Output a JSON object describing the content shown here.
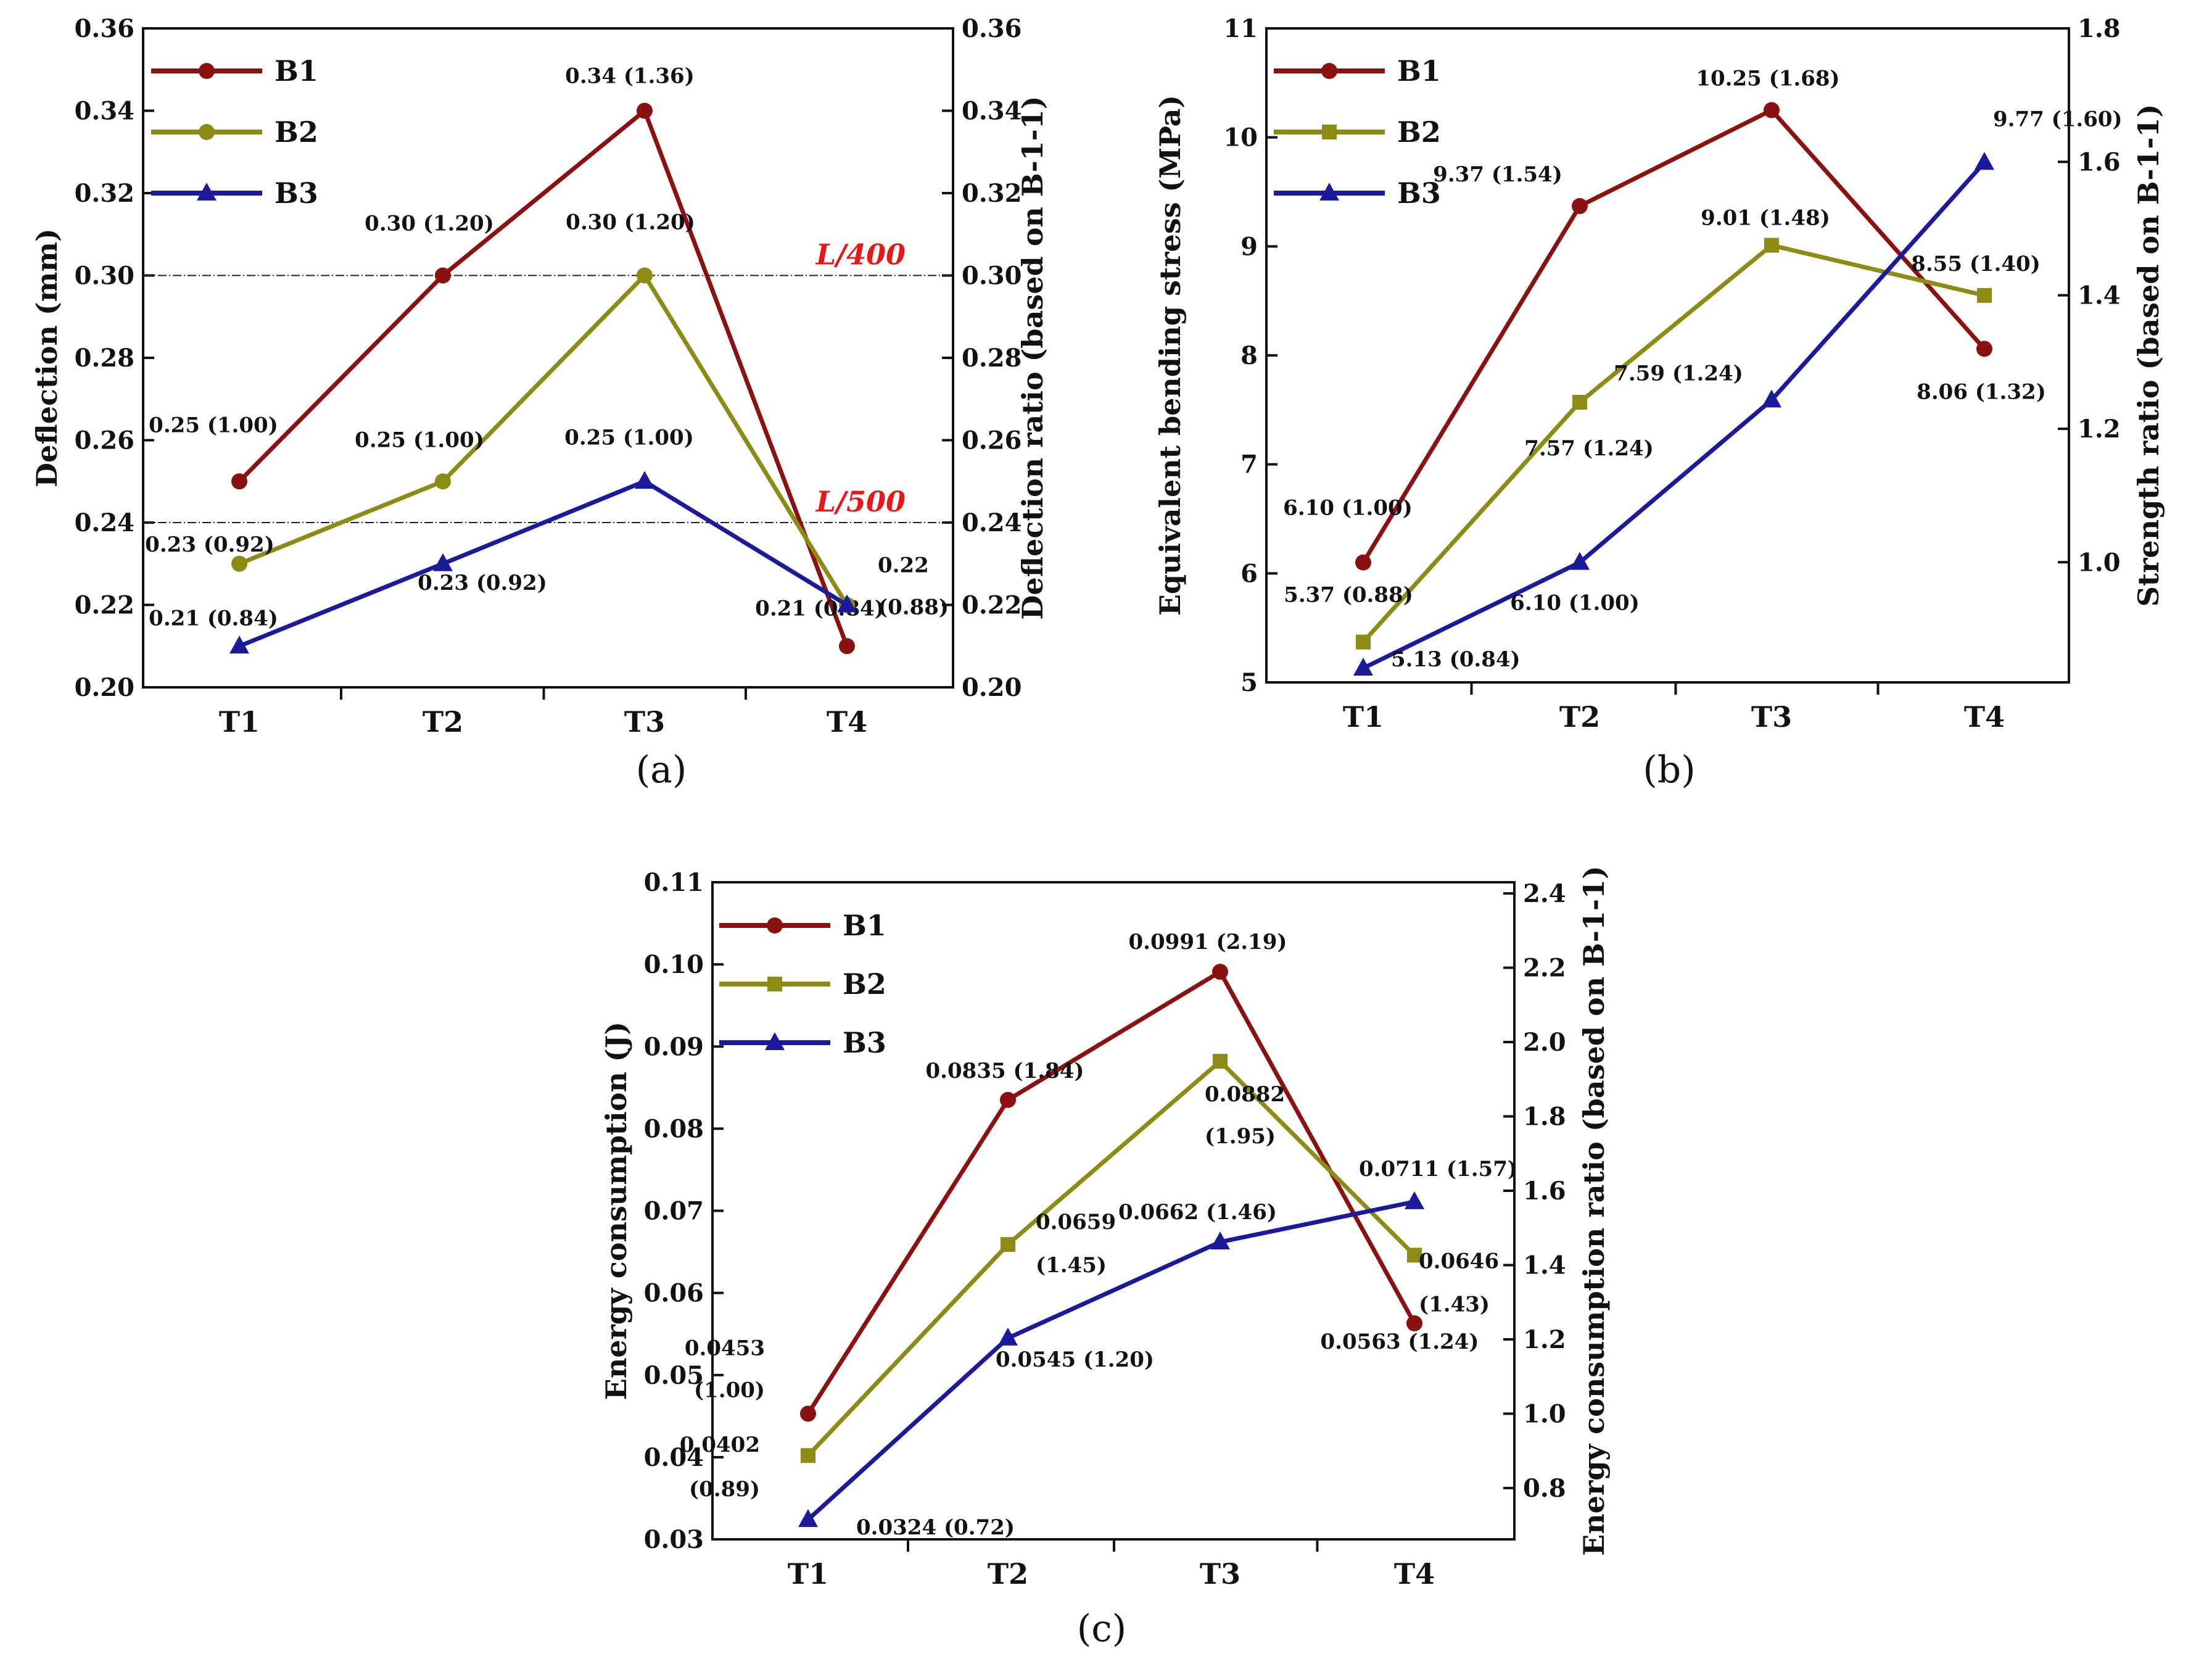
{
  "chart_data": [
    {
      "type": "line",
      "panel_label": "(a)",
      "categories": [
        "T1",
        "T2",
        "T3",
        "T4"
      ],
      "ylabel": "Deflection (mm)",
      "ylabel_right": "Deflection ratio (based on B-1-1)",
      "ylim": [
        0.2,
        0.36
      ],
      "yticks": [
        "0.20",
        "0.22",
        "0.24",
        "0.26",
        "0.28",
        "0.30",
        "0.32",
        "0.34",
        "0.36"
      ],
      "ylim_right": [
        0.2,
        0.36
      ],
      "yticks_right": [
        "0.20",
        "0.22",
        "0.24",
        "0.26",
        "0.28",
        "0.30",
        "0.32",
        "0.34",
        "0.36"
      ],
      "series": [
        {
          "name": "B1",
          "color": "#8b1010",
          "marker": "circle",
          "values": [
            0.25,
            0.3,
            0.34,
            0.21
          ],
          "labels": [
            [
              "0.25 (1.00)"
            ],
            [
              "0.30 (1.20)"
            ],
            [
              "0.34 (1.36)"
            ],
            [
              "0.21 (0.84)"
            ]
          ]
        },
        {
          "name": "B2",
          "color": "#8c8c14",
          "marker": "circle",
          "values": [
            0.23,
            0.25,
            0.3,
            0.22
          ],
          "labels": [
            [
              "0.23 (0.92)"
            ],
            [
              "0.25 (1.00)"
            ],
            [
              "0.30 (1.20)"
            ],
            [
              "0.22",
              "(0.88)"
            ]
          ]
        },
        {
          "name": "B3",
          "color": "#1a1a9a",
          "marker": "triangle",
          "values": [
            0.21,
            0.23,
            0.25,
            0.22
          ],
          "labels": [
            [
              "0.21 (0.84)"
            ],
            [
              "0.23 (0.92)"
            ],
            [
              "0.25 (1.00)"
            ],
            []
          ]
        }
      ],
      "reference_lines": [
        {
          "value": 0.3,
          "label": "L/400",
          "label_italic": "L",
          "label_rest": "/400"
        },
        {
          "value": 0.24,
          "label": "L/500",
          "label_italic": "L",
          "label_rest": "/500"
        }
      ],
      "reference_color": "#e81818",
      "legend": [
        "B1",
        "B2",
        "B3"
      ],
      "legend_position": "top-left"
    },
    {
      "type": "line",
      "panel_label": "(b)",
      "categories": [
        "T1",
        "T2",
        "T3",
        "T4"
      ],
      "ylabel": "Equivalent bending stress (MPa)",
      "ylabel_right": "Strength ratio (based on B-1-1)",
      "ylim": [
        5,
        11
      ],
      "yticks": [
        "5",
        "6",
        "7",
        "8",
        "9",
        "10",
        "11"
      ],
      "ylim_right": [
        0.82,
        1.8
      ],
      "yticks_right": [
        "1.0",
        "1.2",
        "1.4",
        "1.6",
        "1.8"
      ],
      "series": [
        {
          "name": "B1",
          "color": "#8b1010",
          "marker": "circle",
          "values": [
            6.1,
            9.37,
            10.25,
            8.06
          ],
          "labels": [
            [
              "6.10 (1.00)"
            ],
            [
              "9.37 (1.54)"
            ],
            [
              "10.25 (1.68)"
            ],
            [
              "8.06 (1.32)"
            ]
          ]
        },
        {
          "name": "B2",
          "color": "#8c8c14",
          "marker": "square",
          "values": [
            5.37,
            7.57,
            9.01,
            8.55
          ],
          "labels": [
            [
              "5.37 (0.88)"
            ],
            [
              "7.57 (1.24)"
            ],
            [
              "9.01 (1.48)"
            ],
            [
              "8.55 (1.40)"
            ]
          ]
        },
        {
          "name": "B3",
          "color": "#1a1a9a",
          "marker": "triangle",
          "values": [
            5.13,
            6.1,
            7.59,
            9.77
          ],
          "labels": [
            [
              "5.13 (0.84)"
            ],
            [
              "6.10 (1.00)"
            ],
            [
              "7.59 (1.24)"
            ],
            [
              "9.77 (1.60)"
            ]
          ]
        }
      ],
      "legend": [
        "B1",
        "B2",
        "B3"
      ],
      "legend_position": "top-left"
    },
    {
      "type": "line",
      "panel_label": "(c)",
      "categories": [
        "T1",
        "T2",
        "T3",
        "T4"
      ],
      "ylabel": "Energy consumption (J)",
      "ylabel_right": "Energy consumption ratio (based on B-1-1)",
      "ylim": [
        0.03,
        0.11
      ],
      "yticks": [
        "0.03",
        "0.04",
        "0.05",
        "0.06",
        "0.07",
        "0.08",
        "0.09",
        "0.10",
        "0.11"
      ],
      "ylim_right": [
        0.662,
        2.43
      ],
      "yticks_right": [
        "0.8",
        "1.0",
        "1.2",
        "1.4",
        "1.6",
        "1.8",
        "2.0",
        "2.2",
        "2.4"
      ],
      "series": [
        {
          "name": "B1",
          "color": "#8b1010",
          "marker": "circle",
          "values": [
            0.0453,
            0.0835,
            0.0991,
            0.0563
          ],
          "labels": [
            [
              "0.0453",
              "(1.00)"
            ],
            [
              "0.0835 (1.84)"
            ],
            [
              "0.0991 (2.19)"
            ],
            [
              "0.0563 (1.24)"
            ]
          ]
        },
        {
          "name": "B2",
          "color": "#8c8c14",
          "marker": "square",
          "values": [
            0.0402,
            0.0659,
            0.0882,
            0.0646
          ],
          "labels": [
            [
              "0.0402",
              "(0.89)"
            ],
            [
              "0.0659",
              "(1.45)"
            ],
            [
              "0.0882",
              "(1.95)"
            ],
            [
              "0.0646",
              "(1.43)"
            ]
          ]
        },
        {
          "name": "B3",
          "color": "#1a1a9a",
          "marker": "triangle",
          "values": [
            0.0324,
            0.0545,
            0.0662,
            0.0711
          ],
          "labels": [
            [
              "0.0324 (0.72)"
            ],
            [
              "0.0545 (1.20)"
            ],
            [
              "0.0662 (1.46)"
            ],
            [
              "0.0711 (1.57)"
            ]
          ]
        }
      ],
      "legend": [
        "B1",
        "B2",
        "B3"
      ],
      "legend_position": "top-left"
    }
  ]
}
